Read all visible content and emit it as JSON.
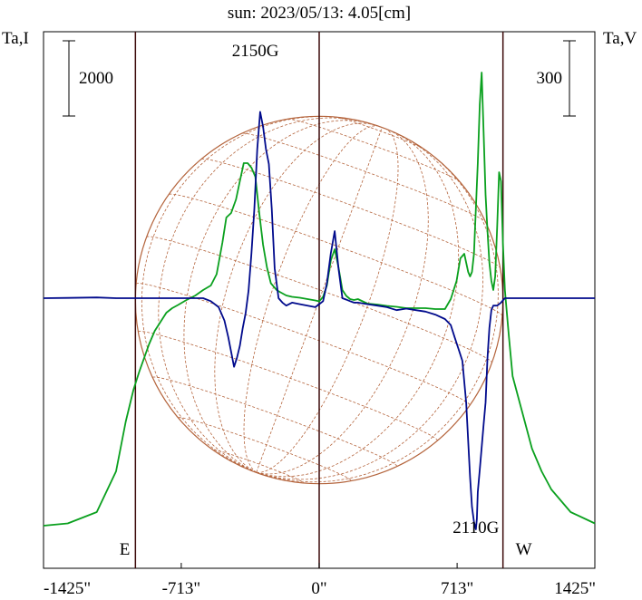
{
  "chart_data": {
    "type": "line",
    "title": "sun: 2023/05/13: 4.05[cm]",
    "ylabel_left": "Ta,I",
    "ylabel_right": "Ta,V",
    "scale_left": "2000",
    "scale_right": "300",
    "xlim": [
      -1425,
      1425
    ],
    "x_ticks": [
      {
        "value": -1425,
        "label": "-1425\""
      },
      {
        "value": -713,
        "label": "-713\""
      },
      {
        "value": 0,
        "label": "0\""
      },
      {
        "value": 713,
        "label": "713\""
      },
      {
        "value": 1425,
        "label": "1425\""
      }
    ],
    "limb_markers": [
      {
        "value": -950,
        "label": "E"
      },
      {
        "value": 950,
        "label": "W"
      }
    ],
    "center_marker": 0,
    "annotations": [
      {
        "x": -330,
        "text": "2150G"
      },
      {
        "x": 810,
        "text": "2110G"
      }
    ],
    "disk": {
      "center_x": 0,
      "radius": 950,
      "p_angle": -20,
      "b0": -3
    },
    "colors": {
      "intensity": "#0aa01e",
      "polarization": "#000a8c",
      "disk": "#b4643c",
      "marker": "#3c0a0a",
      "title": "#000080"
    },
    "series": [
      {
        "name": "I",
        "color": "#0aa01e",
        "x": [
          -1425,
          -1300,
          -1150,
          -1050,
          -1000,
          -960,
          -930,
          -880,
          -850,
          -820,
          -790,
          -760,
          -730,
          -690,
          -640,
          -600,
          -560,
          -530,
          -500,
          -480,
          -455,
          -430,
          -410,
          -390,
          -370,
          -350,
          -330,
          -310,
          -290,
          -270,
          -250,
          -220,
          -200,
          -170,
          -140,
          -100,
          -60,
          -20,
          0,
          20,
          40,
          60,
          80,
          100,
          120,
          140,
          160,
          180,
          200,
          250,
          300,
          350,
          400,
          450,
          500,
          550,
          600,
          650,
          680,
          710,
          730,
          750,
          770,
          780,
          790,
          800,
          810,
          820,
          830,
          840,
          850,
          860,
          870,
          880,
          890,
          900,
          910,
          920,
          930,
          940,
          950,
          960,
          980,
          1000,
          1050,
          1100,
          1150,
          1200,
          1300,
          1400,
          1425
        ],
        "values": [
          0,
          5,
          30,
          120,
          230,
          300,
          340,
          400,
          430,
          450,
          470,
          480,
          487,
          497,
          508,
          520,
          530,
          555,
          625,
          680,
          690,
          720,
          760,
          800,
          800,
          790,
          770,
          690,
          620,
          570,
          535,
          520,
          515,
          508,
          505,
          503,
          500,
          497,
          495,
          505,
          530,
          585,
          610,
          570,
          520,
          507,
          500,
          498,
          500,
          490,
          488,
          485,
          483,
          480,
          480,
          480,
          478,
          478,
          500,
          540,
          590,
          600,
          560,
          550,
          560,
          600,
          700,
          800,
          930,
          1000,
          870,
          730,
          650,
          580,
          540,
          520,
          550,
          660,
          780,
          760,
          620,
          520,
          420,
          330,
          250,
          170,
          120,
          80,
          30,
          10,
          5
        ]
      },
      {
        "name": "V",
        "color": "#000a8c",
        "x": [
          -1425,
          -1300,
          -1150,
          -1050,
          -950,
          -850,
          -750,
          -650,
          -600,
          -560,
          -520,
          -490,
          -470,
          -455,
          -440,
          -425,
          -410,
          -395,
          -380,
          -365,
          -350,
          -335,
          -320,
          -305,
          -290,
          -275,
          -260,
          -245,
          -230,
          -210,
          -190,
          -170,
          -140,
          -100,
          -60,
          -20,
          0,
          20,
          40,
          60,
          80,
          100,
          120,
          140,
          160,
          180,
          200,
          250,
          300,
          350,
          400,
          450,
          500,
          550,
          600,
          650,
          680,
          700,
          720,
          740,
          760,
          780,
          790,
          800,
          810,
          815,
          820,
          830,
          840,
          850,
          860,
          870,
          880,
          890,
          900,
          910,
          920,
          940,
          960,
          1000,
          1100,
          1200,
          1300,
          1425
        ],
        "values": [
          0,
          2,
          5,
          0,
          0,
          0,
          0,
          0,
          0,
          -20,
          -60,
          -150,
          -260,
          -360,
          -460,
          -400,
          -320,
          -200,
          -100,
          50,
          300,
          600,
          1000,
          1250,
          1150,
          1000,
          900,
          600,
          200,
          0,
          -30,
          -50,
          -30,
          -40,
          -50,
          -60,
          -40,
          -20,
          100,
          300,
          450,
          200,
          0,
          -10,
          -20,
          -30,
          -30,
          -40,
          -50,
          -60,
          -80,
          -70,
          -80,
          -90,
          -110,
          -140,
          -180,
          -260,
          -340,
          -420,
          -700,
          -1200,
          -1400,
          -1500,
          -1550,
          -1480,
          -1300,
          -1150,
          -1000,
          -850,
          -700,
          -400,
          -200,
          -80,
          -50,
          -50,
          -50,
          -30,
          0,
          0,
          0,
          0,
          0,
          0
        ]
      }
    ]
  }
}
